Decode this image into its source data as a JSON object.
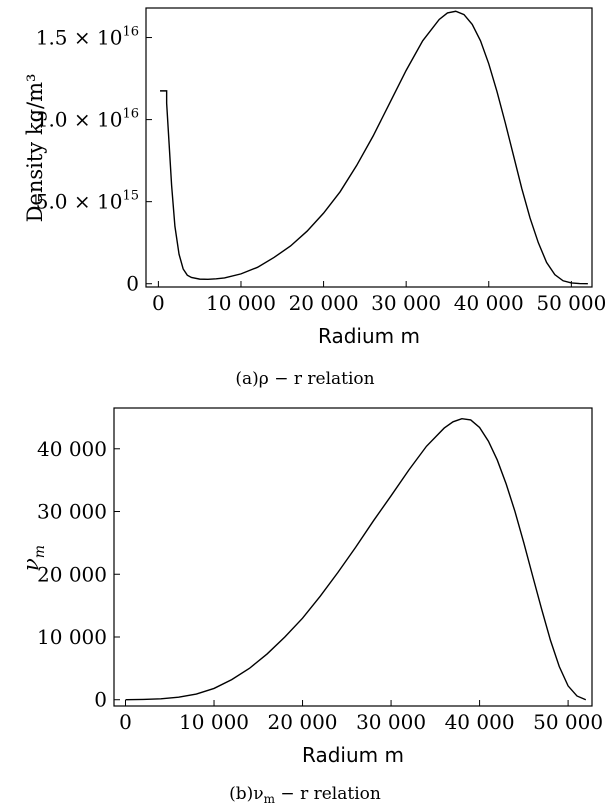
{
  "chart_data": [
    {
      "type": "line",
      "xlabel": "Radium  m",
      "ylabel": "Density  kg/m³",
      "xlim": [
        -1500,
        52500
      ],
      "ylim": [
        -200000000000000,
        16800000000000000
      ],
      "xticks": [
        {
          "value": 0,
          "label": "0"
        },
        {
          "value": 10000,
          "label": "10 000"
        },
        {
          "value": 20000,
          "label": "20 000"
        },
        {
          "value": 30000,
          "label": "30 000"
        },
        {
          "value": 40000,
          "label": "40 000"
        },
        {
          "value": 50000,
          "label": "50 000"
        }
      ],
      "yticks": [
        {
          "value": 0,
          "mant": "0",
          "exp": ""
        },
        {
          "value": 5000000000000000,
          "mant": "5.0 × 10",
          "exp": "15"
        },
        {
          "value": 10000000000000000,
          "mant": "1.0 × 10",
          "exp": "16"
        },
        {
          "value": 15000000000000000,
          "mant": "1.5 × 10",
          "exp": "16"
        }
      ],
      "caption": "(a)ρ − r relation",
      "series": [
        {
          "x": [
            200,
            1000,
            1000,
            1300,
            1600,
            2000,
            2500,
            3000,
            3500,
            4000,
            5000,
            6000,
            7000,
            8000,
            10000,
            12000,
            14000,
            16000,
            18000,
            20000,
            22000,
            24000,
            26000,
            28000,
            30000,
            32000,
            34000,
            35000,
            36000,
            37000,
            38000,
            39000,
            40000,
            41000,
            42000,
            43000,
            44000,
            45000,
            46000,
            47000,
            48000,
            49000,
            50000,
            51000,
            52000
          ],
          "y": [
            11750000000000000,
            11750000000000000,
            11000000000000000,
            8500000000000000,
            6000000000000000,
            3500000000000000,
            1800000000000000,
            900000000000000,
            520000000000000,
            380000000000000,
            280000000000000,
            270000000000000,
            300000000000000,
            350000000000000,
            600000000000000,
            1000000000000000,
            1600000000000000,
            2300000000000000,
            3200000000000000,
            4300000000000000,
            5600000000000000,
            7200000000000000,
            9000000000000000,
            11000000000000000,
            13000000000000000,
            14800000000000000,
            16100000000000000,
            16500000000000000,
            16600000000000000,
            16400000000000000,
            15800000000000000,
            14800000000000000,
            13400000000000000,
            11700000000000000,
            9800000000000000,
            7800000000000000,
            5800000000000000,
            4000000000000000,
            2500000000000000,
            1300000000000000,
            550000000000000,
            180000000000000,
            50000000000000,
            10000000000000,
            0
          ]
        }
      ]
    },
    {
      "type": "line",
      "xlabel": "Radium  m",
      "ylabel": "ν",
      "ylabel_sub": "m",
      "xlim": [
        -1300,
        52700
      ],
      "ylim": [
        -1000,
        46500
      ],
      "xticks": [
        {
          "value": 0,
          "label": "0"
        },
        {
          "value": 10000,
          "label": "10 000"
        },
        {
          "value": 20000,
          "label": "20 000"
        },
        {
          "value": 30000,
          "label": "30 000"
        },
        {
          "value": 40000,
          "label": "40 000"
        },
        {
          "value": 50000,
          "label": "50 000"
        }
      ],
      "yticks": [
        {
          "value": 0,
          "mant": "0",
          "exp": ""
        },
        {
          "value": 10000,
          "mant": "10 000",
          "exp": ""
        },
        {
          "value": 20000,
          "mant": "20 000",
          "exp": ""
        },
        {
          "value": 30000,
          "mant": "30 000",
          "exp": ""
        },
        {
          "value": 40000,
          "mant": "40 000",
          "exp": ""
        }
      ],
      "caption": "(b)ν",
      "caption_sub": "m",
      "caption_rest": " − r relation",
      "series": [
        {
          "x": [
            0,
            2000,
            4000,
            6000,
            8000,
            10000,
            12000,
            14000,
            16000,
            18000,
            20000,
            22000,
            24000,
            26000,
            28000,
            30000,
            32000,
            34000,
            36000,
            37000,
            38000,
            39000,
            40000,
            41000,
            42000,
            43000,
            44000,
            45000,
            46000,
            47000,
            48000,
            49000,
            50000,
            51000,
            52000
          ],
          "y": [
            0,
            50,
            150,
            400,
            900,
            1800,
            3200,
            5000,
            7300,
            10000,
            13000,
            16500,
            20300,
            24300,
            28500,
            32500,
            36600,
            40400,
            43300,
            44300,
            44800,
            44600,
            43400,
            41200,
            38200,
            34400,
            30000,
            25000,
            19700,
            14500,
            9500,
            5300,
            2200,
            600,
            0
          ]
        }
      ]
    }
  ]
}
